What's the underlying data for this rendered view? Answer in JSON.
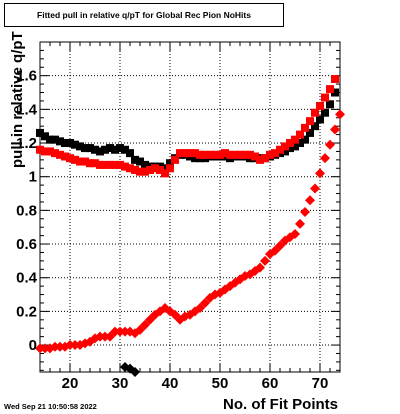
{
  "chart_data": {
    "type": "scatter",
    "title": "Fitted pull in relative q/pT for Global Rec Pion NoHits",
    "xlabel": "No. of Fit Points",
    "ylabel": "pull in relative q/pT",
    "xlim": [
      14,
      74
    ],
    "ylim": [
      -0.16,
      1.8
    ],
    "xticks": [
      20,
      30,
      40,
      50,
      60,
      70
    ],
    "yticks": [
      0,
      0.2,
      0.4,
      0.6,
      0.8,
      1,
      1.2,
      1.4,
      1.6
    ],
    "ytick_labels": [
      "0",
      "0.2",
      "0.4",
      "0.6",
      "0.8",
      "1",
      "1.2",
      "1.4",
      "1.6"
    ],
    "grid": true,
    "series": [
      {
        "color": "#000000",
        "marker": "square",
        "points": [
          [
            14,
            1.26
          ],
          [
            15,
            1.24
          ],
          [
            16,
            1.22
          ],
          [
            17,
            1.22
          ],
          [
            18,
            1.21
          ],
          [
            19,
            1.2
          ],
          [
            20,
            1.2
          ],
          [
            21,
            1.19
          ],
          [
            22,
            1.18
          ],
          [
            23,
            1.17
          ],
          [
            24,
            1.17
          ],
          [
            25,
            1.16
          ],
          [
            26,
            1.15
          ],
          [
            27,
            1.16
          ],
          [
            28,
            1.17
          ],
          [
            29,
            1.16
          ],
          [
            30,
            1.17
          ],
          [
            31,
            1.16
          ],
          [
            32,
            1.14
          ],
          [
            33,
            1.1
          ],
          [
            34,
            1.09
          ],
          [
            35,
            1.07
          ],
          [
            36,
            1.06
          ],
          [
            37,
            1.06
          ],
          [
            38,
            1.06
          ],
          [
            39,
            1.05
          ],
          [
            40,
            1.08
          ],
          [
            41,
            1.11
          ],
          [
            42,
            1.13
          ],
          [
            43,
            1.13
          ],
          [
            44,
            1.12
          ],
          [
            45,
            1.11
          ],
          [
            46,
            1.11
          ],
          [
            47,
            1.11
          ],
          [
            48,
            1.12
          ],
          [
            49,
            1.12
          ],
          [
            50,
            1.12
          ],
          [
            51,
            1.12
          ],
          [
            52,
            1.11
          ],
          [
            53,
            1.12
          ],
          [
            54,
            1.12
          ],
          [
            55,
            1.12
          ],
          [
            56,
            1.11
          ],
          [
            57,
            1.11
          ],
          [
            58,
            1.11
          ],
          [
            59,
            1.11
          ],
          [
            60,
            1.12
          ],
          [
            61,
            1.13
          ],
          [
            62,
            1.14
          ],
          [
            63,
            1.15
          ],
          [
            64,
            1.17
          ],
          [
            65,
            1.18
          ],
          [
            66,
            1.2
          ],
          [
            67,
            1.22
          ],
          [
            68,
            1.26
          ],
          [
            69,
            1.3
          ],
          [
            70,
            1.34
          ],
          [
            71,
            1.38
          ],
          [
            72,
            1.43
          ],
          [
            73,
            1.5
          ]
        ]
      },
      {
        "color": "#000000",
        "marker": "diamond",
        "points": [
          [
            31,
            -0.13
          ],
          [
            32,
            -0.14
          ],
          [
            33,
            -0.16
          ]
        ]
      },
      {
        "color": "#ff0000",
        "marker": "square",
        "points": [
          [
            14,
            1.16
          ],
          [
            15,
            1.15
          ],
          [
            16,
            1.15
          ],
          [
            17,
            1.14
          ],
          [
            18,
            1.13
          ],
          [
            19,
            1.12
          ],
          [
            20,
            1.11
          ],
          [
            21,
            1.1
          ],
          [
            22,
            1.09
          ],
          [
            23,
            1.09
          ],
          [
            24,
            1.08
          ],
          [
            25,
            1.08
          ],
          [
            26,
            1.07
          ],
          [
            27,
            1.07
          ],
          [
            28,
            1.07
          ],
          [
            29,
            1.07
          ],
          [
            30,
            1.07
          ],
          [
            31,
            1.06
          ],
          [
            32,
            1.05
          ],
          [
            33,
            1.04
          ],
          [
            34,
            1.03
          ],
          [
            35,
            1.03
          ],
          [
            36,
            1.04
          ],
          [
            37,
            1.05
          ],
          [
            38,
            1.04
          ],
          [
            39,
            1.02
          ],
          [
            40,
            1.05
          ],
          [
            41,
            1.1
          ],
          [
            42,
            1.14
          ],
          [
            43,
            1.14
          ],
          [
            44,
            1.14
          ],
          [
            45,
            1.14
          ],
          [
            46,
            1.13
          ],
          [
            47,
            1.13
          ],
          [
            48,
            1.13
          ],
          [
            49,
            1.13
          ],
          [
            50,
            1.13
          ],
          [
            51,
            1.14
          ],
          [
            52,
            1.13
          ],
          [
            53,
            1.13
          ],
          [
            54,
            1.13
          ],
          [
            55,
            1.13
          ],
          [
            56,
            1.13
          ],
          [
            57,
            1.12
          ],
          [
            58,
            1.1
          ],
          [
            59,
            1.11
          ],
          [
            60,
            1.13
          ],
          [
            61,
            1.14
          ],
          [
            62,
            1.16
          ],
          [
            63,
            1.18
          ],
          [
            64,
            1.2
          ],
          [
            65,
            1.22
          ],
          [
            66,
            1.25
          ],
          [
            67,
            1.29
          ],
          [
            68,
            1.33
          ],
          [
            69,
            1.38
          ],
          [
            70,
            1.42
          ],
          [
            71,
            1.47
          ],
          [
            72,
            1.52
          ],
          [
            73,
            1.58
          ]
        ]
      },
      {
        "color": "#ff0000",
        "marker": "diamond",
        "points": [
          [
            14,
            -0.02
          ],
          [
            15,
            -0.02
          ],
          [
            16,
            -0.02
          ],
          [
            17,
            -0.01
          ],
          [
            18,
            -0.01
          ],
          [
            19,
            -0.01
          ],
          [
            20,
            0.0
          ],
          [
            21,
            0.0
          ],
          [
            22,
            0.0
          ],
          [
            23,
            0.01
          ],
          [
            24,
            0.02
          ],
          [
            25,
            0.04
          ],
          [
            26,
            0.05
          ],
          [
            27,
            0.05
          ],
          [
            28,
            0.05
          ],
          [
            29,
            0.08
          ],
          [
            30,
            0.08
          ],
          [
            31,
            0.08
          ],
          [
            32,
            0.08
          ],
          [
            33,
            0.07
          ],
          [
            34,
            0.09
          ],
          [
            35,
            0.12
          ],
          [
            36,
            0.15
          ],
          [
            37,
            0.18
          ],
          [
            38,
            0.2
          ],
          [
            39,
            0.22
          ],
          [
            40,
            0.2
          ],
          [
            41,
            0.18
          ],
          [
            42,
            0.15
          ],
          [
            43,
            0.17
          ],
          [
            44,
            0.18
          ],
          [
            45,
            0.2
          ],
          [
            46,
            0.22
          ],
          [
            47,
            0.25
          ],
          [
            48,
            0.28
          ],
          [
            49,
            0.3
          ],
          [
            50,
            0.31
          ],
          [
            51,
            0.33
          ],
          [
            52,
            0.35
          ],
          [
            53,
            0.37
          ],
          [
            54,
            0.39
          ],
          [
            55,
            0.41
          ],
          [
            56,
            0.42
          ],
          [
            57,
            0.44
          ],
          [
            58,
            0.46
          ],
          [
            59,
            0.5
          ],
          [
            60,
            0.54
          ],
          [
            61,
            0.56
          ],
          [
            62,
            0.59
          ],
          [
            63,
            0.62
          ],
          [
            64,
            0.64
          ],
          [
            65,
            0.66
          ],
          [
            66,
            0.72
          ],
          [
            67,
            0.79
          ],
          [
            68,
            0.86
          ],
          [
            69,
            0.93
          ],
          [
            70,
            1.02
          ],
          [
            71,
            1.11
          ],
          [
            72,
            1.19
          ],
          [
            73,
            1.28
          ],
          [
            74,
            1.37
          ]
        ]
      }
    ]
  },
  "footer": {
    "timestamp": "Wed Sep 21 10:50:58 2022"
  }
}
